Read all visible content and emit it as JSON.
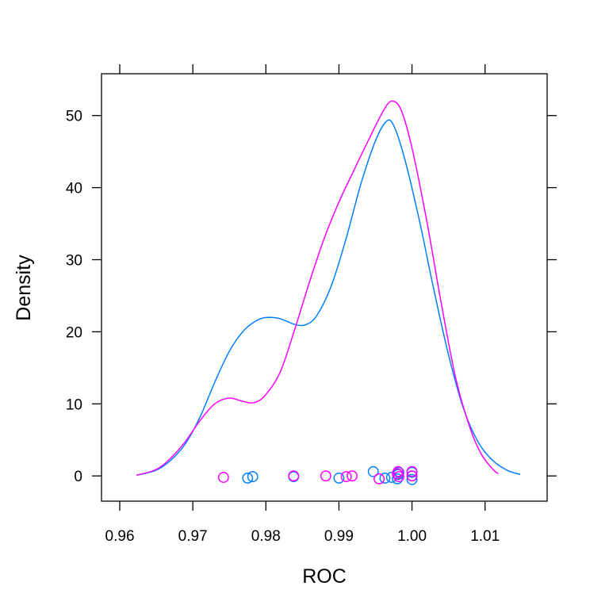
{
  "chart_data": {
    "type": "line",
    "title": "",
    "xlabel": "ROC",
    "ylabel": "Density",
    "xlim": [
      0.9575,
      1.0185
    ],
    "ylim": [
      -3.5,
      55.8
    ],
    "x_ticks": [
      0.96,
      0.97,
      0.98,
      0.99,
      1.0,
      1.01
    ],
    "x_tick_labels": [
      "0.96",
      "0.97",
      "0.98",
      "0.99",
      "1.00",
      "1.01"
    ],
    "y_ticks": [
      0,
      10,
      20,
      30,
      40,
      50
    ],
    "y_tick_labels": [
      "0",
      "10",
      "20",
      "30",
      "40",
      "50"
    ],
    "grid": false,
    "series": [
      {
        "color": "#0080ff",
        "curve": [
          [
            0.9623,
            0.1
          ],
          [
            0.965,
            0.8
          ],
          [
            0.967,
            2.2
          ],
          [
            0.969,
            4.5
          ],
          [
            0.971,
            8.2
          ],
          [
            0.973,
            13.0
          ],
          [
            0.975,
            17.3
          ],
          [
            0.977,
            20.2
          ],
          [
            0.979,
            21.7
          ],
          [
            0.9805,
            22.0
          ],
          [
            0.982,
            21.8
          ],
          [
            0.984,
            21.0
          ],
          [
            0.9855,
            21.0
          ],
          [
            0.987,
            22.3
          ],
          [
            0.989,
            26.5
          ],
          [
            0.991,
            33.0
          ],
          [
            0.993,
            40.5
          ],
          [
            0.995,
            46.5
          ],
          [
            0.9965,
            49.2
          ],
          [
            0.9975,
            48.6
          ],
          [
            0.999,
            44.0
          ],
          [
            1.001,
            35.5
          ],
          [
            1.003,
            25.8
          ],
          [
            1.005,
            16.8
          ],
          [
            1.007,
            9.5
          ],
          [
            1.009,
            4.8
          ],
          [
            1.011,
            2.2
          ],
          [
            1.013,
            0.8
          ],
          [
            1.0148,
            0.2
          ]
        ],
        "points": [
          [
            0.9775,
            -0.3
          ],
          [
            0.9782,
            -0.1
          ],
          [
            0.9838,
            -0.1
          ],
          [
            0.99,
            -0.3
          ],
          [
            0.9947,
            0.6
          ],
          [
            0.9963,
            -0.3
          ],
          [
            0.9972,
            -0.2
          ],
          [
            0.998,
            -0.4
          ],
          [
            0.9981,
            0.2
          ],
          [
            0.9982,
            0.5
          ],
          [
            1.0,
            -0.5
          ],
          [
            1.0,
            0.0
          ],
          [
            1.0,
            0.5
          ]
        ]
      },
      {
        "color": "#ff00ff",
        "curve": [
          [
            0.9623,
            0.1
          ],
          [
            0.965,
            0.9
          ],
          [
            0.967,
            2.5
          ],
          [
            0.969,
            4.8
          ],
          [
            0.971,
            7.7
          ],
          [
            0.973,
            10.0
          ],
          [
            0.975,
            10.8
          ],
          [
            0.977,
            10.3
          ],
          [
            0.9785,
            10.2
          ],
          [
            0.98,
            11.3
          ],
          [
            0.982,
            14.5
          ],
          [
            0.984,
            20.5
          ],
          [
            0.986,
            27.0
          ],
          [
            0.988,
            33.0
          ],
          [
            0.99,
            38.0
          ],
          [
            0.992,
            42.3
          ],
          [
            0.994,
            46.5
          ],
          [
            0.996,
            50.5
          ],
          [
            0.9972,
            52.0
          ],
          [
            0.9985,
            50.8
          ],
          [
            1.0,
            45.5
          ],
          [
            1.002,
            35.5
          ],
          [
            1.004,
            24.0
          ],
          [
            1.006,
            13.5
          ],
          [
            1.008,
            6.5
          ],
          [
            1.0095,
            3.0
          ],
          [
            1.011,
            1.0
          ],
          [
            1.0118,
            0.3
          ]
        ],
        "points": [
          [
            0.9742,
            -0.2
          ],
          [
            0.9838,
            0.0
          ],
          [
            0.9882,
            0.0
          ],
          [
            0.991,
            -0.1
          ],
          [
            0.9918,
            0.0
          ],
          [
            0.9955,
            -0.4
          ],
          [
            0.998,
            0.3
          ],
          [
            0.9981,
            0.6
          ],
          [
            0.9982,
            -0.1
          ],
          [
            1.0,
            0.0
          ],
          [
            1.0,
            0.6
          ]
        ]
      }
    ]
  }
}
